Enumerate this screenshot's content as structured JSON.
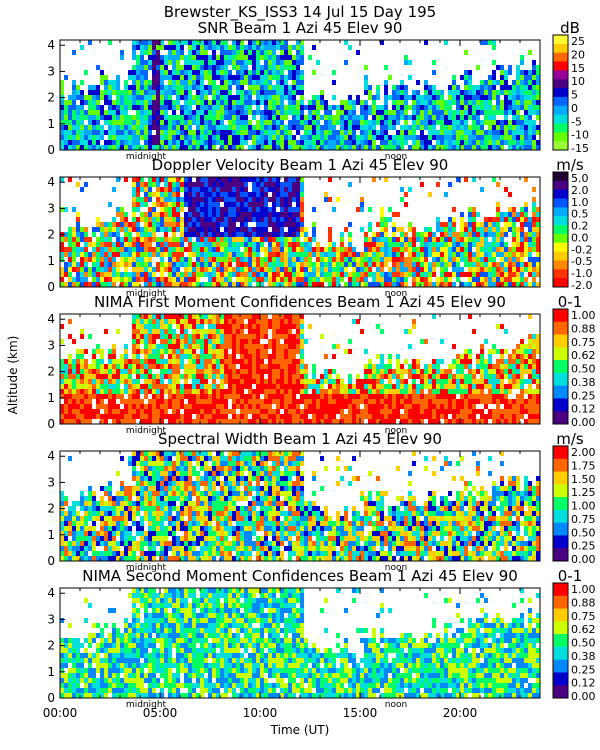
{
  "figure": {
    "title": "Brewster_KS_ISS3   14 Jul 15 Day 195",
    "ylabel": "Altitude (km)",
    "xlabel": "Time (UT)",
    "x_ticks": [
      "00:00",
      "05:00",
      "10:00",
      "15:00",
      "20:00"
    ],
    "midnight_label": "midnight",
    "noon_label": "noon"
  },
  "chart_data": [
    {
      "type": "heatmap",
      "title": "SNR Beam 1 Azi   45 Elev 90",
      "unit": "dB",
      "xlim": [
        0,
        24
      ],
      "ylim": [
        0,
        4.2
      ],
      "y_ticks": [
        "0",
        "1",
        "2",
        "3",
        "4"
      ],
      "colorbar_ticks": [
        "25",
        "20",
        "15",
        "10",
        "5",
        "0",
        "-5",
        "-10",
        "-15"
      ],
      "colorbar_colors": [
        "#ffff33",
        "#ffcc00",
        "#ff6600",
        "#ff0000",
        "#990099",
        "#4b0082",
        "#0000cc",
        "#0066ff",
        "#00aaff",
        "#00dddd",
        "#00ff66",
        "#66ff00",
        "#99ff33"
      ]
    },
    {
      "type": "heatmap",
      "title": "Doppler Velocity Beam 1 Azi   45 Elev 90",
      "unit": "m/s",
      "xlim": [
        0,
        24
      ],
      "ylim": [
        0,
        4.2
      ],
      "y_ticks": [
        "0",
        "1",
        "2",
        "3",
        "4"
      ],
      "colorbar_ticks": [
        "5.0",
        "2.0",
        "1.0",
        "0.5",
        "0.2",
        "0.0",
        "-0.2",
        "-0.5",
        "-1.0",
        "-2.0"
      ],
      "colorbar_colors": [
        "#220033",
        "#4b0082",
        "#0000cc",
        "#0055ff",
        "#00aaff",
        "#00dddd",
        "#00ff66",
        "#66ff00",
        "#ffff00",
        "#ffcc00",
        "#ff8800",
        "#ff3300",
        "#ff0000"
      ]
    },
    {
      "type": "heatmap",
      "title": "NIMA First Moment Confidences Beam 1 Azi   45 Elev 90",
      "unit": "0-1",
      "xlim": [
        0,
        24
      ],
      "ylim": [
        0,
        4.2
      ],
      "y_ticks": [
        "0",
        "1",
        "2",
        "3",
        "4"
      ],
      "colorbar_ticks": [
        "1.00",
        "0.88",
        "0.75",
        "0.62",
        "0.50",
        "0.38",
        "0.25",
        "0.12",
        "0.00"
      ],
      "colorbar_colors": [
        "#ff0000",
        "#ff6600",
        "#ffcc00",
        "#ccff00",
        "#00ff66",
        "#00dddd",
        "#0088ff",
        "#0000cc",
        "#4b0082"
      ]
    },
    {
      "type": "heatmap",
      "title": "Spectral Width Beam 1 Azi   45 Elev 90",
      "unit": "m/s",
      "xlim": [
        0,
        24
      ],
      "ylim": [
        0,
        4.2
      ],
      "y_ticks": [
        "0",
        "1",
        "2",
        "3",
        "4"
      ],
      "colorbar_ticks": [
        "2.00",
        "1.75",
        "1.50",
        "1.25",
        "1.00",
        "0.75",
        "0.50",
        "0.25",
        "0.00"
      ],
      "colorbar_colors": [
        "#ff0000",
        "#ff6600",
        "#ffcc00",
        "#ccff00",
        "#00ff66",
        "#00dddd",
        "#0088ff",
        "#0000cc",
        "#4b0082"
      ]
    },
    {
      "type": "heatmap",
      "title": "NIMA Second Moment Confidences Beam 1 Azi   45 Elev 90",
      "unit": "0-1",
      "xlim": [
        0,
        24
      ],
      "ylim": [
        0,
        4.2
      ],
      "y_ticks": [
        "0",
        "1",
        "2",
        "3",
        "4"
      ],
      "colorbar_ticks": [
        "1.00",
        "0.88",
        "0.75",
        "0.62",
        "0.50",
        "0.38",
        "0.25",
        "0.12",
        "0.00"
      ],
      "colorbar_colors": [
        "#ff0000",
        "#ff6600",
        "#ffcc00",
        "#ccff00",
        "#00ff66",
        "#00dddd",
        "#0088ff",
        "#0000cc",
        "#4b0082"
      ]
    }
  ]
}
